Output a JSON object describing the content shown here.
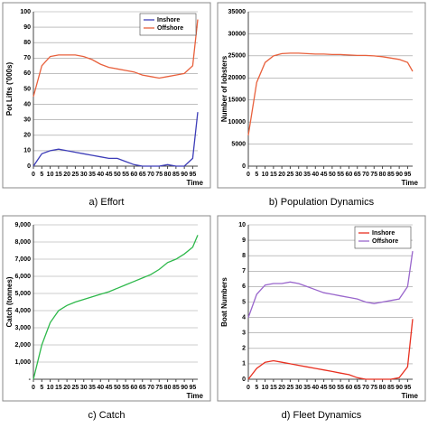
{
  "chart_data": [
    {
      "type": "line",
      "caption": "a) Effort",
      "y_label": "Pot Lifts ('000s)",
      "x_label": "Time",
      "x": [
        0,
        5,
        10,
        15,
        20,
        25,
        30,
        35,
        40,
        45,
        50,
        55,
        60,
        65,
        70,
        75,
        80,
        85,
        90,
        95,
        98
      ],
      "xlim": [
        0,
        98
      ],
      "xticks": [
        0,
        5,
        10,
        15,
        20,
        25,
        30,
        35,
        40,
        45,
        50,
        55,
        60,
        65,
        70,
        75,
        80,
        85,
        90,
        95
      ],
      "ylim": [
        0,
        100
      ],
      "yticks": [
        0,
        10,
        20,
        30,
        40,
        50,
        60,
        70,
        80,
        90,
        100
      ],
      "grid": true,
      "legend": "top-right",
      "series": [
        {
          "name": "Inshore",
          "color": "#3d3db8",
          "values": [
            0,
            8,
            10,
            11,
            10,
            9,
            8,
            7,
            6,
            5,
            5,
            3,
            1,
            0,
            0,
            0,
            1,
            0,
            0,
            5,
            35
          ]
        },
        {
          "name": "Offshore",
          "color": "#e8603c",
          "values": [
            45,
            65,
            71,
            72,
            72,
            72,
            71,
            69,
            66,
            64,
            63,
            62,
            61,
            59,
            58,
            57,
            58,
            59,
            60,
            65,
            95
          ]
        }
      ]
    },
    {
      "type": "line",
      "caption": "b) Population Dynamics",
      "y_label": "Number of lobsters",
      "x_label": "Time",
      "x": [
        0,
        5,
        10,
        15,
        20,
        25,
        30,
        35,
        40,
        45,
        50,
        55,
        60,
        65,
        70,
        75,
        80,
        85,
        90,
        95,
        98
      ],
      "xlim": [
        0,
        98
      ],
      "xticks": [
        0,
        5,
        10,
        15,
        20,
        25,
        30,
        35,
        40,
        45,
        50,
        55,
        60,
        65,
        70,
        75,
        80,
        85,
        90,
        95
      ],
      "ylim": [
        0,
        35000
      ],
      "yticks": [
        0,
        5000,
        10000,
        15000,
        20000,
        25000,
        30000,
        35000
      ],
      "grid": true,
      "series": [
        {
          "color": "#e8603c",
          "values": [
            7000,
            19000,
            23500,
            25000,
            25500,
            25600,
            25600,
            25500,
            25400,
            25400,
            25300,
            25300,
            25200,
            25100,
            25100,
            25000,
            24800,
            24500,
            24200,
            23500,
            21500
          ]
        }
      ]
    },
    {
      "type": "line",
      "caption": "c) Catch",
      "y_label": "Catch (tonnes)",
      "x_label": "Time",
      "x": [
        0,
        5,
        10,
        15,
        20,
        25,
        30,
        35,
        40,
        45,
        50,
        55,
        60,
        65,
        70,
        75,
        80,
        85,
        90,
        95,
        98
      ],
      "xlim": [
        0,
        98
      ],
      "xticks": [
        0,
        5,
        10,
        15,
        20,
        25,
        30,
        35,
        40,
        45,
        50,
        55,
        60,
        65,
        70,
        75,
        80,
        85,
        90,
        95
      ],
      "ylim": [
        0,
        9000
      ],
      "yticks": [
        {
          "value": 0,
          "label": "-"
        },
        {
          "value": 1000,
          "label": "1,000"
        },
        {
          "value": 2000,
          "label": "2,000"
        },
        {
          "value": 3000,
          "label": "3,000"
        },
        {
          "value": 4000,
          "label": "4,000"
        },
        {
          "value": 5000,
          "label": "5,000"
        },
        {
          "value": 6000,
          "label": "6,000"
        },
        {
          "value": 7000,
          "label": "7,000"
        },
        {
          "value": 8000,
          "label": "8,000"
        },
        {
          "value": 9000,
          "label": "9,000"
        }
      ],
      "grid": true,
      "series": [
        {
          "color": "#2db84a",
          "values": [
            0,
            2000,
            3300,
            4000,
            4300,
            4500,
            4650,
            4800,
            4950,
            5100,
            5300,
            5500,
            5700,
            5900,
            6100,
            6400,
            6800,
            7000,
            7300,
            7700,
            8400
          ]
        }
      ]
    },
    {
      "type": "line",
      "caption": "d) Fleet Dynamics",
      "y_label": "Boat Numbers",
      "x_label": "Time",
      "x": [
        0,
        5,
        10,
        15,
        20,
        25,
        30,
        35,
        40,
        45,
        50,
        55,
        60,
        65,
        70,
        75,
        80,
        85,
        90,
        95,
        98
      ],
      "xlim": [
        0,
        98
      ],
      "xticks": [
        0,
        5,
        10,
        15,
        20,
        25,
        30,
        35,
        40,
        45,
        50,
        55,
        60,
        65,
        70,
        75,
        80,
        85,
        90,
        95
      ],
      "ylim": [
        0,
        10
      ],
      "yticks": [
        0,
        1,
        2,
        3,
        4,
        5,
        6,
        7,
        8,
        9,
        10
      ],
      "grid": true,
      "legend": "top-right",
      "series": [
        {
          "name": "Inshore",
          "color": "#e83020",
          "values": [
            0,
            0.7,
            1.1,
            1.2,
            1.1,
            1.0,
            0.9,
            0.8,
            0.7,
            0.6,
            0.5,
            0.4,
            0.3,
            0.1,
            0,
            0,
            0,
            0,
            0.1,
            0.8,
            3.9
          ]
        },
        {
          "name": "Offshore",
          "color": "#9966cc",
          "values": [
            4,
            5.5,
            6.1,
            6.2,
            6.2,
            6.3,
            6.2,
            6.0,
            5.8,
            5.6,
            5.5,
            5.4,
            5.3,
            5.2,
            5.0,
            4.9,
            5.0,
            5.1,
            5.2,
            6.0,
            8.3
          ]
        }
      ]
    }
  ]
}
